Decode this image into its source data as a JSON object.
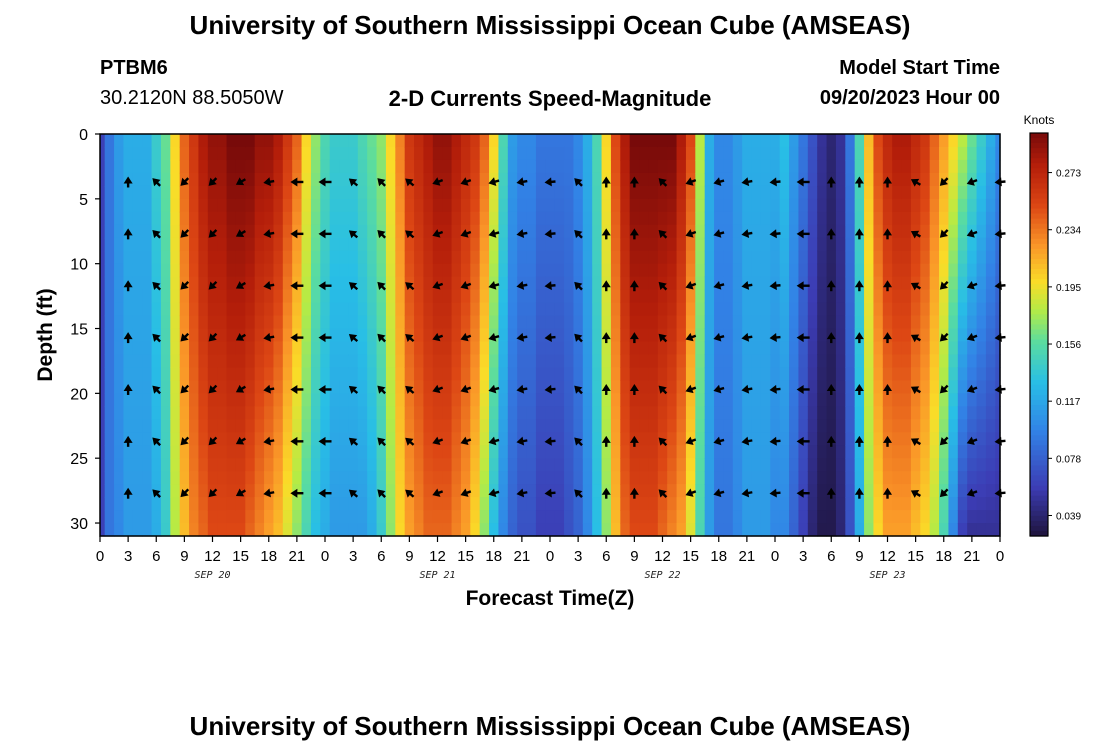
{
  "header": {
    "title": "University of Southern Mississippi Ocean Cube (AMSEAS)",
    "station_id": "PTBM6",
    "coordinates": "30.2120N  88.5050W",
    "subtitle": "2-D Currents Speed-Magnitude",
    "model_start_label": "Model Start Time",
    "model_start_value": "09/20/2023 Hour 00"
  },
  "footer": {
    "title": "University of Southern Mississippi Ocean Cube (AMSEAS)"
  },
  "chart_data": {
    "type": "heatmap",
    "title": "2-D Currents Speed-Magnitude",
    "xlabel": "Forecast Time(Z)",
    "ylabel": "Depth (ft)",
    "x_range_hours": [
      0,
      96
    ],
    "ylim": [
      0,
      31
    ],
    "y_inverted": true,
    "x_ticks_hours": [
      0,
      3,
      6,
      9,
      12,
      15,
      18,
      21,
      24,
      27,
      30,
      33,
      36,
      39,
      42,
      45,
      48,
      51,
      54,
      57,
      60,
      63,
      66,
      69,
      72,
      75,
      78,
      81,
      84,
      87,
      90,
      93,
      96
    ],
    "x_tick_labels": [
      "0",
      "3",
      "6",
      "9",
      "12",
      "15",
      "18",
      "21",
      "0",
      "3",
      "6",
      "9",
      "12",
      "15",
      "18",
      "21",
      "0",
      "3",
      "6",
      "9",
      "12",
      "15",
      "18",
      "21",
      "0",
      "3",
      "6",
      "9",
      "12",
      "15",
      "18",
      "21",
      "0"
    ],
    "y_ticks": [
      0,
      5,
      10,
      15,
      20,
      25,
      30
    ],
    "day_labels": [
      {
        "hour": 12,
        "label": "SEP 20"
      },
      {
        "hour": 36,
        "label": "SEP 21"
      },
      {
        "hour": 60,
        "label": "SEP 22"
      },
      {
        "hour": 84,
        "label": "SEP 23"
      }
    ],
    "colorbar": {
      "unit": "Knots",
      "min": 0.025,
      "max": 0.3,
      "ticks": [
        0.039,
        0.078,
        0.117,
        0.156,
        0.195,
        0.234,
        0.273
      ],
      "tick_labels": [
        "0.039",
        "0.078",
        "0.117",
        "0.156",
        "0.195",
        "0.234",
        "0.273"
      ]
    },
    "speed_profile": {
      "hours": [
        0,
        1,
        2,
        3,
        4,
        5,
        6,
        7,
        8,
        9,
        10,
        11,
        12,
        13,
        14,
        15,
        16,
        17,
        18,
        19,
        20,
        21,
        22,
        23,
        24,
        25,
        26,
        27,
        28,
        29,
        30,
        31,
        32,
        33,
        34,
        35,
        36,
        37,
        38,
        39,
        40,
        41,
        42,
        43,
        44,
        45,
        46,
        47,
        48,
        49,
        50,
        51,
        52,
        53,
        54,
        55,
        56,
        57,
        58,
        59,
        60,
        61,
        62,
        63,
        64,
        65,
        66,
        67,
        68,
        69,
        70,
        71,
        72,
        73,
        74,
        75,
        76,
        77,
        78,
        79,
        80,
        81,
        82,
        83,
        84,
        85,
        86,
        87,
        88,
        89,
        90,
        91,
        92,
        93,
        94,
        95,
        96
      ],
      "surface_knots": [
        0.06,
        0.09,
        0.11,
        0.12,
        0.12,
        0.12,
        0.14,
        0.16,
        0.2,
        0.24,
        0.26,
        0.28,
        0.29,
        0.29,
        0.3,
        0.3,
        0.3,
        0.29,
        0.29,
        0.28,
        0.26,
        0.24,
        0.2,
        0.17,
        0.15,
        0.14,
        0.14,
        0.14,
        0.15,
        0.16,
        0.17,
        0.2,
        0.23,
        0.26,
        0.27,
        0.28,
        0.29,
        0.29,
        0.28,
        0.27,
        0.26,
        0.24,
        0.2,
        0.15,
        0.11,
        0.1,
        0.1,
        0.09,
        0.09,
        0.09,
        0.09,
        0.1,
        0.12,
        0.15,
        0.2,
        0.25,
        0.28,
        0.3,
        0.3,
        0.3,
        0.3,
        0.3,
        0.28,
        0.25,
        0.18,
        0.12,
        0.1,
        0.1,
        0.11,
        0.12,
        0.12,
        0.12,
        0.12,
        0.13,
        0.11,
        0.09,
        0.07,
        0.05,
        0.04,
        0.05,
        0.09,
        0.15,
        0.21,
        0.25,
        0.27,
        0.28,
        0.28,
        0.27,
        0.26,
        0.24,
        0.22,
        0.2,
        0.18,
        0.16,
        0.14,
        0.12,
        0.1
      ],
      "bottom_knots": [
        0.06,
        0.09,
        0.1,
        0.11,
        0.11,
        0.11,
        0.12,
        0.14,
        0.18,
        0.21,
        0.23,
        0.24,
        0.25,
        0.25,
        0.25,
        0.25,
        0.24,
        0.23,
        0.22,
        0.21,
        0.19,
        0.17,
        0.15,
        0.13,
        0.12,
        0.11,
        0.11,
        0.11,
        0.11,
        0.12,
        0.14,
        0.17,
        0.2,
        0.22,
        0.23,
        0.24,
        0.24,
        0.24,
        0.23,
        0.22,
        0.2,
        0.17,
        0.13,
        0.1,
        0.08,
        0.07,
        0.07,
        0.06,
        0.06,
        0.06,
        0.07,
        0.08,
        0.1,
        0.13,
        0.17,
        0.21,
        0.24,
        0.25,
        0.25,
        0.25,
        0.24,
        0.23,
        0.22,
        0.19,
        0.15,
        0.11,
        0.09,
        0.09,
        0.1,
        0.11,
        0.11,
        0.11,
        0.1,
        0.1,
        0.08,
        0.06,
        0.04,
        0.03,
        0.03,
        0.04,
        0.07,
        0.12,
        0.17,
        0.2,
        0.22,
        0.22,
        0.22,
        0.21,
        0.2,
        0.18,
        0.15,
        0.1,
        0.06,
        0.05,
        0.05,
        0.05,
        0.05
      ]
    },
    "vectors": {
      "hours": [
        3,
        6,
        9,
        12,
        15,
        18,
        21,
        24,
        27,
        30,
        33,
        36,
        39,
        42,
        45,
        48,
        51,
        54,
        57,
        60,
        63,
        66,
        69,
        72,
        75,
        78,
        81,
        84,
        87,
        90,
        93,
        96
      ],
      "depths_ft": [
        3.7,
        7.7,
        11.7,
        15.7,
        19.7,
        23.7,
        27.7
      ],
      "direction_deg": [
        0,
        315,
        225,
        225,
        240,
        260,
        270,
        270,
        310,
        315,
        310,
        250,
        250,
        255,
        260,
        265,
        315,
        0,
        0,
        315,
        250,
        255,
        260,
        265,
        270,
        0,
        0,
        0,
        300,
        225,
        250,
        265
      ],
      "long_direction_deg": 270
    }
  }
}
